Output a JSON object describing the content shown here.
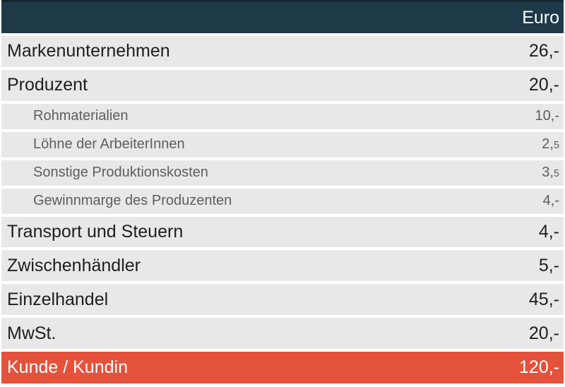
{
  "table": {
    "header": {
      "currency_label": "Euro"
    },
    "rows": [
      {
        "label": "Markenunternehmen",
        "value": "26,-",
        "type": "main"
      },
      {
        "label": "Produzent",
        "value": "20,-",
        "type": "main"
      },
      {
        "label": "Rohmaterialien",
        "value": "10,-",
        "type": "sub"
      },
      {
        "label": "Löhne der ArbeiterInnen",
        "value": "2,",
        "value_small": "5",
        "type": "sub"
      },
      {
        "label": "Sonstige Produktionskosten",
        "value": "3,",
        "value_small": "5",
        "type": "sub"
      },
      {
        "label": "Gewinnmarge des Produzenten",
        "value": "4,-",
        "type": "sub"
      },
      {
        "label": "Transport und Steuern",
        "value": "4,-",
        "type": "main"
      },
      {
        "label": "Zwischenhändler",
        "value": "5,-",
        "type": "main"
      },
      {
        "label": "Einzelhandel",
        "value": "45,-",
        "type": "main"
      },
      {
        "label": "MwSt.",
        "value": "20,-",
        "type": "main"
      },
      {
        "label": "Kunde / Kundin",
        "value": "120,-",
        "type": "total"
      }
    ]
  },
  "colors": {
    "header_bg": "#1e3947",
    "header_border": "#15262f",
    "header_text": "#ffffff",
    "row_bg": "#e8e8e8",
    "main_text": "#1e1e1e",
    "sub_text": "#5e5e5e",
    "highlight_bg": "#e5523c"
  },
  "chart_data": {
    "type": "table",
    "title": "",
    "columns": [
      "",
      "Euro"
    ],
    "rows": [
      {
        "label": "Markenunternehmen",
        "euro": 26,
        "level": 1
      },
      {
        "label": "Produzent",
        "euro": 20,
        "level": 1
      },
      {
        "label": "Rohmaterialien",
        "euro": 10,
        "level": 2
      },
      {
        "label": "Löhne der ArbeiterInnen",
        "euro": 2.5,
        "level": 2
      },
      {
        "label": "Sonstige Produktionskosten",
        "euro": 3.5,
        "level": 2
      },
      {
        "label": "Gewinnmarge des Produzenten",
        "euro": 4,
        "level": 2
      },
      {
        "label": "Transport und Steuern",
        "euro": 4,
        "level": 1
      },
      {
        "label": "Zwischenhändler",
        "euro": 5,
        "level": 1
      },
      {
        "label": "Einzelhandel",
        "euro": 45,
        "level": 1
      },
      {
        "label": "MwSt.",
        "euro": 20,
        "level": 1
      },
      {
        "label": "Kunde / Kundin",
        "euro": 120,
        "level": 1,
        "highlighted": true
      }
    ],
    "legend_position": "none",
    "grid": false
  }
}
